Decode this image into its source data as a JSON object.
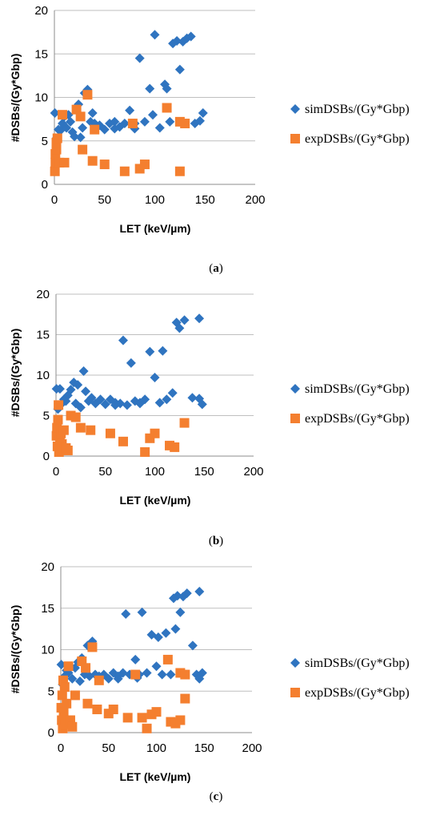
{
  "panels": [
    {
      "label": "a",
      "caption_open": "(",
      "caption_close": ")",
      "chart_data": {
        "type": "scatter",
        "title": "",
        "xlabel": "LET (keV/µm)",
        "ylabel": "#DSBs/(Gy*Gbp)",
        "xlim": [
          0,
          200
        ],
        "ylim": [
          0,
          20
        ],
        "xticks": [
          0,
          50,
          100,
          150,
          200
        ],
        "yticks": [
          0,
          5,
          10,
          15,
          20
        ],
        "grid": "horizontal",
        "legend": "right",
        "series": [
          {
            "name": "simDSBs/(Gy*Gbp)",
            "marker": "diamond",
            "color": "#2f74c0",
            "points": [
              [
                0.5,
                8.2
              ],
              [
                2,
                5.3
              ],
              [
                4,
                6.3
              ],
              [
                6,
                6.2
              ],
              [
                8,
                7.0
              ],
              [
                10,
                7.8
              ],
              [
                12,
                6.5
              ],
              [
                14,
                8.0
              ],
              [
                16,
                7.2
              ],
              [
                18,
                6.0
              ],
              [
                20,
                5.5
              ],
              [
                22,
                8.8
              ],
              [
                24,
                9.2
              ],
              [
                26,
                5.4
              ],
              [
                28,
                6.5
              ],
              [
                30,
                10.5
              ],
              [
                33,
                10.9
              ],
              [
                36,
                7.2
              ],
              [
                38,
                8.2
              ],
              [
                40,
                7.0
              ],
              [
                45,
                6.8
              ],
              [
                50,
                6.3
              ],
              [
                55,
                7.0
              ],
              [
                60,
                7.2
              ],
              [
                65,
                6.6
              ],
              [
                70,
                7.0
              ],
              [
                75,
                8.5
              ],
              [
                80,
                7.0
              ],
              [
                85,
                14.5
              ],
              [
                90,
                7.2
              ],
              [
                95,
                11.0
              ],
              [
                98,
                8.0
              ],
              [
                100,
                17.2
              ],
              [
                105,
                6.5
              ],
              [
                110,
                11.5
              ],
              [
                112,
                11.0
              ],
              [
                115,
                7.2
              ],
              [
                118,
                16.2
              ],
              [
                122,
                16.5
              ],
              [
                125,
                13.2
              ],
              [
                128,
                16.4
              ],
              [
                132,
                16.8
              ],
              [
                136,
                17.0
              ],
              [
                140,
                7.0
              ],
              [
                145,
                7.3
              ],
              [
                148,
                8.2
              ],
              [
                60,
                6.4
              ],
              [
                80,
                6.4
              ]
            ]
          },
          {
            "name": "expDSBs/(Gy*Gbp)",
            "marker": "square",
            "color": "#f47f2f",
            "points": [
              [
                0.5,
                1.5
              ],
              [
                1,
                2.5
              ],
              [
                1,
                3.5
              ],
              [
                2,
                4.0
              ],
              [
                2,
                4.8
              ],
              [
                3,
                5.3
              ],
              [
                5,
                2.5
              ],
              [
                8,
                8.0
              ],
              [
                10,
                2.5
              ],
              [
                22,
                8.6
              ],
              [
                26,
                7.8
              ],
              [
                28,
                4.0
              ],
              [
                33,
                10.3
              ],
              [
                38,
                2.7
              ],
              [
                40,
                6.3
              ],
              [
                50,
                2.3
              ],
              [
                70,
                1.5
              ],
              [
                78,
                7.0
              ],
              [
                85,
                1.8
              ],
              [
                90,
                2.3
              ],
              [
                112,
                8.8
              ],
              [
                125,
                1.5
              ],
              [
                125,
                7.2
              ],
              [
                130,
                7.0
              ]
            ]
          }
        ]
      }
    },
    {
      "label": "b",
      "caption_open": "(",
      "caption_close": ")",
      "chart_data": {
        "type": "scatter",
        "title": "",
        "xlabel": "LET (keV/µm)",
        "ylabel": "#DSBs/(Gy*Gbp)",
        "xlim": [
          0,
          200
        ],
        "ylim": [
          0,
          20
        ],
        "xticks": [
          0,
          50,
          100,
          150,
          200
        ],
        "yticks": [
          0,
          5,
          10,
          15,
          20
        ],
        "grid": "horizontal",
        "legend": "right",
        "series": [
          {
            "name": "simDSBs/(Gy*Gbp)",
            "marker": "diamond",
            "color": "#2f74c0",
            "points": [
              [
                0.5,
                8.3
              ],
              [
                2,
                5.8
              ],
              [
                4,
                8.3
              ],
              [
                6,
                6.5
              ],
              [
                8,
                7.0
              ],
              [
                10,
                6.8
              ],
              [
                12,
                7.5
              ],
              [
                15,
                8.2
              ],
              [
                18,
                9.1
              ],
              [
                20,
                6.5
              ],
              [
                22,
                8.8
              ],
              [
                25,
                6.0
              ],
              [
                28,
                10.5
              ],
              [
                30,
                8.0
              ],
              [
                33,
                6.8
              ],
              [
                36,
                7.2
              ],
              [
                40,
                6.5
              ],
              [
                45,
                7.0
              ],
              [
                50,
                6.4
              ],
              [
                55,
                7.0
              ],
              [
                60,
                6.3
              ],
              [
                65,
                6.5
              ],
              [
                68,
                14.3
              ],
              [
                72,
                6.3
              ],
              [
                76,
                11.5
              ],
              [
                80,
                6.8
              ],
              [
                85,
                6.5
              ],
              [
                90,
                7.0
              ],
              [
                95,
                12.9
              ],
              [
                100,
                9.7
              ],
              [
                105,
                6.6
              ],
              [
                108,
                13.0
              ],
              [
                112,
                7.0
              ],
              [
                118,
                7.8
              ],
              [
                122,
                16.5
              ],
              [
                125,
                15.8
              ],
              [
                130,
                16.8
              ],
              [
                138,
                7.2
              ],
              [
                145,
                17.0
              ],
              [
                148,
                6.4
              ],
              [
                145,
                7.1
              ],
              [
                60,
                6.6
              ],
              [
                85,
                6.6
              ]
            ]
          },
          {
            "name": "expDSBs/(Gy*Gbp)",
            "marker": "square",
            "color": "#f47f2f",
            "points": [
              [
                0.5,
                2.5
              ],
              [
                1,
                3.5
              ],
              [
                1.5,
                1.2
              ],
              [
                2,
                4.5
              ],
              [
                2.5,
                6.3
              ],
              [
                3,
                0.5
              ],
              [
                4,
                2.0
              ],
              [
                5,
                2.8
              ],
              [
                6,
                1.5
              ],
              [
                8,
                3.2
              ],
              [
                10,
                1.0
              ],
              [
                12,
                0.7
              ],
              [
                15,
                5.0
              ],
              [
                20,
                4.8
              ],
              [
                25,
                3.5
              ],
              [
                35,
                3.2
              ],
              [
                55,
                2.8
              ],
              [
                68,
                1.8
              ],
              [
                90,
                0.5
              ],
              [
                95,
                2.2
              ],
              [
                100,
                2.8
              ],
              [
                115,
                1.3
              ],
              [
                120,
                1.1
              ],
              [
                130,
                4.1
              ]
            ]
          }
        ]
      }
    },
    {
      "label": "c",
      "caption_open": "(",
      "caption_close": ")",
      "chart_data": {
        "type": "scatter",
        "title": "",
        "xlabel": "LET (keV/µm)",
        "ylabel": "#DSBs/(Gy*Gbp)",
        "xlim": [
          0,
          200
        ],
        "ylim": [
          0,
          20
        ],
        "xticks": [
          0,
          50,
          100,
          150,
          200
        ],
        "yticks": [
          0,
          5,
          10,
          15,
          20
        ],
        "grid": "horizontal",
        "legend": "right",
        "series": [
          {
            "name": "simDSBs/(Gy*Gbp)",
            "marker": "diamond",
            "color": "#2f74c0",
            "points": [
              [
                0.5,
                8.2
              ],
              [
                2,
                5.8
              ],
              [
                4,
                6.8
              ],
              [
                6,
                7.5
              ],
              [
                8,
                7.2
              ],
              [
                10,
                8.0
              ],
              [
                12,
                6.5
              ],
              [
                15,
                7.8
              ],
              [
                18,
                8.5
              ],
              [
                20,
                6.2
              ],
              [
                22,
                9.0
              ],
              [
                25,
                7.0
              ],
              [
                28,
                10.5
              ],
              [
                30,
                6.8
              ],
              [
                33,
                11.0
              ],
              [
                36,
                7.0
              ],
              [
                40,
                6.8
              ],
              [
                45,
                7.0
              ],
              [
                50,
                6.5
              ],
              [
                55,
                7.2
              ],
              [
                60,
                6.8
              ],
              [
                65,
                7.2
              ],
              [
                68,
                14.3
              ],
              [
                72,
                7.0
              ],
              [
                78,
                8.8
              ],
              [
                82,
                7.0
              ],
              [
                85,
                14.5
              ],
              [
                90,
                7.2
              ],
              [
                95,
                11.8
              ],
              [
                100,
                8.0
              ],
              [
                102,
                11.5
              ],
              [
                106,
                7.0
              ],
              [
                110,
                12.0
              ],
              [
                115,
                7.0
              ],
              [
                118,
                16.2
              ],
              [
                120,
                12.5
              ],
              [
                122,
                16.5
              ],
              [
                125,
                14.5
              ],
              [
                128,
                16.4
              ],
              [
                132,
                16.8
              ],
              [
                138,
                10.5
              ],
              [
                142,
                7.0
              ],
              [
                145,
                17.0
              ],
              [
                148,
                7.2
              ],
              [
                145,
                6.5
              ],
              [
                60,
                6.5
              ],
              [
                80,
                6.6
              ]
            ]
          },
          {
            "name": "expDSBs/(Gy*Gbp)",
            "marker": "square",
            "color": "#f47f2f",
            "points": [
              [
                0.5,
                3.0
              ],
              [
                1,
                1.5
              ],
              [
                1.5,
                4.5
              ],
              [
                2,
                0.5
              ],
              [
                2.5,
                6.3
              ],
              [
                3,
                2.5
              ],
              [
                4,
                5.5
              ],
              [
                5,
                1.0
              ],
              [
                6,
                3.5
              ],
              [
                8,
                8.0
              ],
              [
                10,
                1.5
              ],
              [
                12,
                0.7
              ],
              [
                15,
                4.5
              ],
              [
                22,
                8.6
              ],
              [
                26,
                7.8
              ],
              [
                28,
                3.5
              ],
              [
                33,
                10.3
              ],
              [
                38,
                2.8
              ],
              [
                40,
                6.3
              ],
              [
                50,
                2.3
              ],
              [
                55,
                2.8
              ],
              [
                70,
                1.8
              ],
              [
                78,
                7.0
              ],
              [
                85,
                1.8
              ],
              [
                90,
                0.5
              ],
              [
                95,
                2.2
              ],
              [
                100,
                2.5
              ],
              [
                112,
                8.8
              ],
              [
                115,
                1.3
              ],
              [
                120,
                1.1
              ],
              [
                125,
                7.2
              ],
              [
                130,
                7.0
              ],
              [
                130,
                4.1
              ],
              [
                125,
                1.5
              ]
            ]
          }
        ]
      }
    }
  ]
}
